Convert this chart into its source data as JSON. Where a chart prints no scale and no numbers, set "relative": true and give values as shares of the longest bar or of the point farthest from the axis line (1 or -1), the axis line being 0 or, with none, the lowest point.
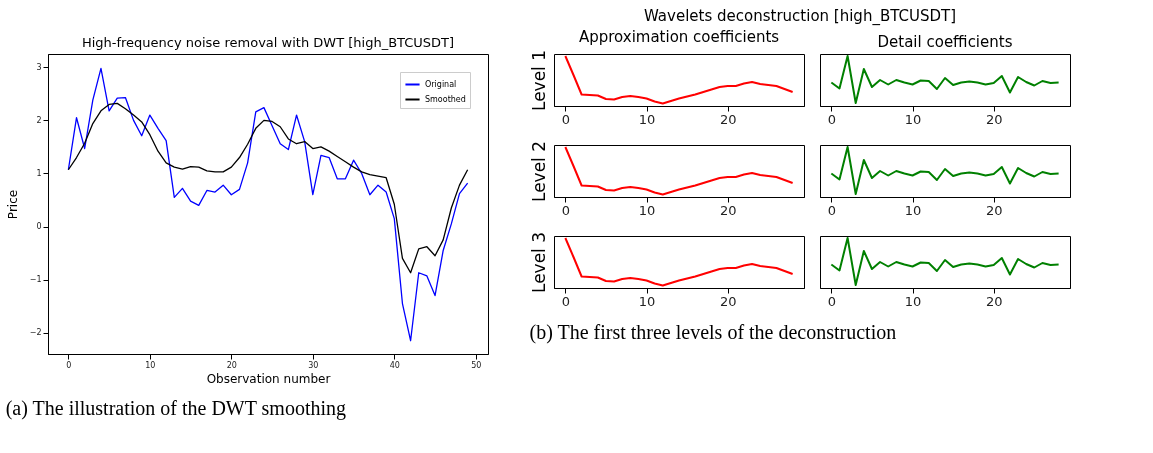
{
  "chart_data": [
    {
      "type": "line",
      "title": "High-frequency noise removal with DWT [high_BTCUSDT]",
      "xlabel": "Observation number",
      "ylabel": "Price",
      "x": [
        0,
        1,
        2,
        3,
        4,
        5,
        6,
        7,
        8,
        9,
        10,
        11,
        12,
        13,
        14,
        15,
        16,
        17,
        18,
        19,
        20,
        21,
        22,
        23,
        24,
        25,
        26,
        27,
        28,
        29,
        30,
        31,
        32,
        33,
        34,
        35,
        36,
        37,
        38,
        39,
        40,
        41,
        42,
        43,
        44,
        45,
        46,
        47,
        48,
        49
      ],
      "xlim": [
        -2.5,
        51.5
      ],
      "xticks": [
        0,
        10,
        20,
        30,
        40,
        50
      ],
      "ylim": [
        -2.4,
        3.25
      ],
      "yticks": [
        -2,
        -1,
        0,
        1,
        2,
        3
      ],
      "legend": "top right",
      "marker": "none",
      "annotations": [
        "(a) The illustration of the DWT smoothing"
      ],
      "series": [
        {
          "name": "Original",
          "color": "#0000ff",
          "values": [
            1.07,
            2.05,
            1.47,
            2.38,
            2.98,
            2.18,
            2.42,
            2.43,
            2.0,
            1.71,
            2.1,
            1.85,
            1.62,
            0.55,
            0.72,
            0.48,
            0.4,
            0.68,
            0.65,
            0.78,
            0.6,
            0.7,
            1.2,
            2.16,
            2.24,
            1.9,
            1.56,
            1.45,
            2.1,
            1.6,
            0.6,
            1.34,
            1.3,
            0.9,
            0.9,
            1.25,
            1.0,
            0.6,
            0.78,
            0.65,
            0.15,
            -1.45,
            -2.15,
            -0.87,
            -0.93,
            -1.3,
            -0.45,
            0.05,
            0.62,
            0.82
          ]
        },
        {
          "name": "Smoothed",
          "color": "#000000",
          "values": [
            1.07,
            1.3,
            1.57,
            1.94,
            2.18,
            2.3,
            2.32,
            2.22,
            2.1,
            1.97,
            1.73,
            1.42,
            1.2,
            1.12,
            1.08,
            1.13,
            1.12,
            1.05,
            1.03,
            1.03,
            1.12,
            1.3,
            1.55,
            1.85,
            2.0,
            1.98,
            1.88,
            1.65,
            1.56,
            1.6,
            1.47,
            1.5,
            1.42,
            1.32,
            1.22,
            1.12,
            1.03,
            0.98,
            0.95,
            0.92,
            0.42,
            -0.6,
            -0.87,
            -0.42,
            -0.38,
            -0.55,
            -0.25,
            0.35,
            0.78,
            1.07
          ]
        }
      ]
    },
    {
      "type": "line",
      "relative": true,
      "title": "Approximation coefficients",
      "ylabel": "Level 1",
      "x": [
        0,
        1,
        2,
        3,
        4,
        5,
        6,
        7,
        8,
        9,
        10,
        11,
        12,
        13,
        14,
        15,
        16,
        17,
        18,
        19,
        20,
        21,
        22,
        23,
        24,
        25,
        26,
        27,
        28
      ],
      "xlim": [
        -1.4,
        29.4
      ],
      "xticks": [
        0,
        10,
        20
      ],
      "marker": "none",
      "annotations": [
        "Wavelets deconstruction [high_BTCUSDT]",
        "(b) The first three levels of the deconstruction"
      ],
      "series": [
        {
          "color": "#ff0000",
          "values": [
            1,
            0.62,
            0.23,
            0.22,
            0.21,
            0.14,
            0.13,
            0.18,
            0.2,
            0.18,
            0.15,
            0.09,
            0.05,
            0.1,
            0.15,
            0.19,
            0.23,
            0.28,
            0.33,
            0.38,
            0.4,
            0.4,
            0.45,
            0.48,
            0.44,
            0.42,
            0.4,
            0.34,
            0.28
          ]
        }
      ]
    },
    {
      "type": "line",
      "relative": true,
      "title": "Detail coefficients",
      "x": [
        0,
        1,
        2,
        3,
        4,
        5,
        6,
        7,
        8,
        9,
        10,
        11,
        12,
        13,
        14,
        15,
        16,
        17,
        18,
        19,
        20,
        21,
        22,
        23,
        24,
        25,
        26,
        27,
        28
      ],
      "xlim": [
        -1.4,
        29.4
      ],
      "xticks": [
        0,
        10,
        20
      ],
      "marker": "none",
      "series": [
        {
          "color": "#008000",
          "values": [
            0.47,
            0.35,
            1,
            0.06,
            0.74,
            0.38,
            0.52,
            0.43,
            0.52,
            0.47,
            0.43,
            0.51,
            0.5,
            0.34,
            0.56,
            0.42,
            0.47,
            0.49,
            0.47,
            0.43,
            0.46,
            0.6,
            0.27,
            0.58,
            0.48,
            0.41,
            0.5,
            0.46,
            0.47
          ]
        }
      ]
    },
    {
      "type": "line",
      "relative": true,
      "ylabel": "Level 2",
      "x": [
        0,
        1,
        2,
        3,
        4,
        5,
        6,
        7,
        8,
        9,
        10,
        11,
        12,
        13,
        14,
        15,
        16,
        17,
        18,
        19,
        20,
        21,
        22,
        23,
        24,
        25,
        26,
        27,
        28
      ],
      "xlim": [
        -1.4,
        29.4
      ],
      "xticks": [
        0,
        10,
        20
      ],
      "marker": "none",
      "series": [
        {
          "color": "#ff0000",
          "values": [
            1,
            0.62,
            0.23,
            0.22,
            0.21,
            0.14,
            0.13,
            0.18,
            0.2,
            0.18,
            0.15,
            0.09,
            0.05,
            0.1,
            0.15,
            0.19,
            0.23,
            0.28,
            0.33,
            0.38,
            0.4,
            0.4,
            0.45,
            0.48,
            0.44,
            0.42,
            0.4,
            0.34,
            0.28
          ]
        }
      ]
    },
    {
      "type": "line",
      "relative": true,
      "x": [
        0,
        1,
        2,
        3,
        4,
        5,
        6,
        7,
        8,
        9,
        10,
        11,
        12,
        13,
        14,
        15,
        16,
        17,
        18,
        19,
        20,
        21,
        22,
        23,
        24,
        25,
        26,
        27,
        28
      ],
      "xlim": [
        -1.4,
        29.4
      ],
      "xticks": [
        0,
        10,
        20
      ],
      "marker": "none",
      "series": [
        {
          "color": "#008000",
          "values": [
            0.47,
            0.35,
            1,
            0.06,
            0.74,
            0.38,
            0.52,
            0.43,
            0.52,
            0.47,
            0.43,
            0.51,
            0.5,
            0.34,
            0.56,
            0.42,
            0.47,
            0.49,
            0.47,
            0.43,
            0.46,
            0.6,
            0.27,
            0.58,
            0.48,
            0.41,
            0.5,
            0.46,
            0.47
          ]
        }
      ]
    },
    {
      "type": "line",
      "relative": true,
      "ylabel": "Level 3",
      "x": [
        0,
        1,
        2,
        3,
        4,
        5,
        6,
        7,
        8,
        9,
        10,
        11,
        12,
        13,
        14,
        15,
        16,
        17,
        18,
        19,
        20,
        21,
        22,
        23,
        24,
        25,
        26,
        27,
        28
      ],
      "xlim": [
        -1.4,
        29.4
      ],
      "xticks": [
        0,
        10,
        20
      ],
      "marker": "none",
      "series": [
        {
          "color": "#ff0000",
          "values": [
            1,
            0.62,
            0.23,
            0.22,
            0.21,
            0.14,
            0.13,
            0.18,
            0.2,
            0.18,
            0.15,
            0.09,
            0.05,
            0.1,
            0.15,
            0.19,
            0.23,
            0.28,
            0.33,
            0.38,
            0.4,
            0.4,
            0.45,
            0.48,
            0.44,
            0.42,
            0.4,
            0.34,
            0.28
          ]
        }
      ]
    },
    {
      "type": "line",
      "relative": true,
      "x": [
        0,
        1,
        2,
        3,
        4,
        5,
        6,
        7,
        8,
        9,
        10,
        11,
        12,
        13,
        14,
        15,
        16,
        17,
        18,
        19,
        20,
        21,
        22,
        23,
        24,
        25,
        26,
        27,
        28
      ],
      "xlim": [
        -1.4,
        29.4
      ],
      "xticks": [
        0,
        10,
        20
      ],
      "marker": "none",
      "series": [
        {
          "color": "#008000",
          "values": [
            0.47,
            0.35,
            1,
            0.06,
            0.74,
            0.38,
            0.52,
            0.43,
            0.52,
            0.47,
            0.43,
            0.51,
            0.5,
            0.34,
            0.56,
            0.42,
            0.47,
            0.49,
            0.47,
            0.43,
            0.46,
            0.6,
            0.27,
            0.58,
            0.48,
            0.41,
            0.5,
            0.46,
            0.47
          ]
        }
      ]
    }
  ]
}
